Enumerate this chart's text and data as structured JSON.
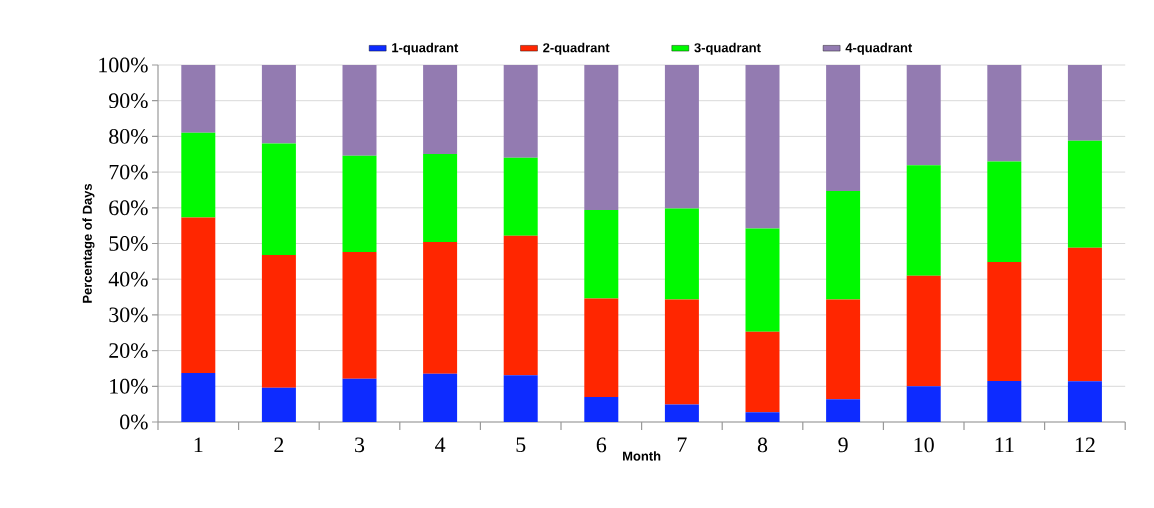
{
  "chart_data": {
    "type": "bar",
    "stacked": true,
    "xlabel": "Month",
    "ylabel": "Percentage of Days",
    "categories": [
      "1",
      "2",
      "3",
      "4",
      "5",
      "6",
      "7",
      "8",
      "9",
      "10",
      "11",
      "12"
    ],
    "series": [
      {
        "name": "1-quadrant",
        "color": "#0d2bff",
        "values": [
          13.7,
          9.6,
          12.1,
          13.5,
          13.1,
          7.0,
          4.9,
          2.7,
          6.4,
          10.0,
          11.5,
          11.4
        ]
      },
      {
        "name": "2-quadrant",
        "color": "#ff2600",
        "values": [
          43.6,
          37.2,
          35.5,
          36.9,
          39.1,
          27.6,
          29.4,
          22.6,
          27.9,
          31.0,
          33.3,
          37.4
        ]
      },
      {
        "name": "3-quadrant",
        "color": "#00f900",
        "values": [
          23.7,
          31.2,
          27.0,
          24.7,
          21.8,
          24.8,
          25.5,
          28.9,
          30.4,
          30.9,
          28.2,
          30.0
        ]
      },
      {
        "name": "4-quadrant",
        "color": "#937bb1",
        "values": [
          19.0,
          22.0,
          25.4,
          24.9,
          26.0,
          40.6,
          40.2,
          45.8,
          35.3,
          28.1,
          27.0,
          21.2
        ]
      }
    ],
    "ylim": [
      0,
      100
    ],
    "yticks": [
      {
        "value": 0,
        "label": "0%"
      },
      {
        "value": 10,
        "label": "10%"
      },
      {
        "value": 20,
        "label": "20%"
      },
      {
        "value": 30,
        "label": "30%"
      },
      {
        "value": 40,
        "label": "40%"
      },
      {
        "value": 50,
        "label": "50%"
      },
      {
        "value": 60,
        "label": "60%"
      },
      {
        "value": 70,
        "label": "70%"
      },
      {
        "value": 80,
        "label": "80%"
      },
      {
        "value": 90,
        "label": "90%"
      },
      {
        "value": 100,
        "label": "100%"
      }
    ],
    "grid": "y",
    "legend": "top"
  }
}
